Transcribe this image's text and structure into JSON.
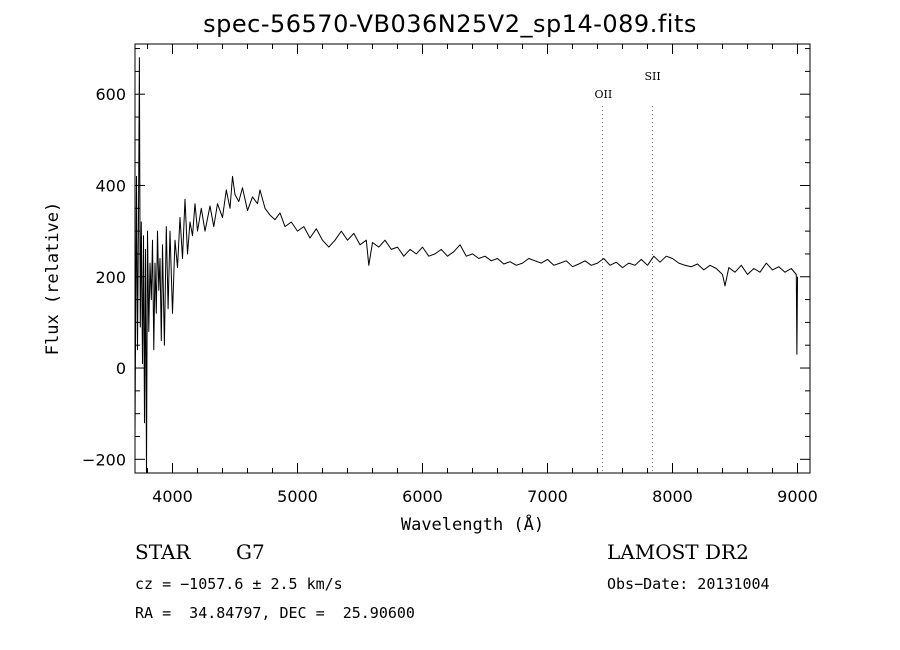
{
  "chart_data": {
    "type": "line",
    "title": "spec-56570-VB036N25V2_sp14-089.fits",
    "xlabel": "Wavelength (Å)",
    "ylabel": "Flux (relative)",
    "xlim": [
      3700,
      9100
    ],
    "ylim": [
      -230,
      710
    ],
    "xticks": [
      4000,
      5000,
      6000,
      7000,
      8000,
      9000
    ],
    "yticks": [
      -200,
      0,
      200,
      400,
      600
    ],
    "series": [
      {
        "color": "#000000",
        "points": [
          [
            3700,
            -150
          ],
          [
            3712,
            420
          ],
          [
            3720,
            40
          ],
          [
            3728,
            330
          ],
          [
            3735,
            680
          ],
          [
            3742,
            90
          ],
          [
            3750,
            320
          ],
          [
            3760,
            10
          ],
          [
            3768,
            290
          ],
          [
            3776,
            -120
          ],
          [
            3784,
            260
          ],
          [
            3792,
            -230
          ],
          [
            3800,
            300
          ],
          [
            3810,
            80
          ],
          [
            3820,
            230
          ],
          [
            3830,
            150
          ],
          [
            3840,
            280
          ],
          [
            3850,
            40
          ],
          [
            3860,
            230
          ],
          [
            3870,
            120
          ],
          [
            3880,
            300
          ],
          [
            3890,
            170
          ],
          [
            3900,
            240
          ],
          [
            3910,
            60
          ],
          [
            3920,
            270
          ],
          [
            3935,
            50
          ],
          [
            3950,
            310
          ],
          [
            3965,
            130
          ],
          [
            3980,
            300
          ],
          [
            4000,
            120
          ],
          [
            4020,
            280
          ],
          [
            4040,
            220
          ],
          [
            4060,
            330
          ],
          [
            4080,
            240
          ],
          [
            4100,
            370
          ],
          [
            4120,
            250
          ],
          [
            4140,
            320
          ],
          [
            4160,
            290
          ],
          [
            4180,
            360
          ],
          [
            4200,
            300
          ],
          [
            4230,
            350
          ],
          [
            4260,
            300
          ],
          [
            4300,
            355
          ],
          [
            4330,
            310
          ],
          [
            4360,
            360
          ],
          [
            4400,
            330
          ],
          [
            4430,
            390
          ],
          [
            4460,
            350
          ],
          [
            4480,
            420
          ],
          [
            4500,
            380
          ],
          [
            4530,
            365
          ],
          [
            4560,
            395
          ],
          [
            4600,
            345
          ],
          [
            4640,
            375
          ],
          [
            4680,
            360
          ],
          [
            4700,
            390
          ],
          [
            4740,
            350
          ],
          [
            4780,
            335
          ],
          [
            4820,
            325
          ],
          [
            4860,
            340
          ],
          [
            4900,
            310
          ],
          [
            4950,
            320
          ],
          [
            5000,
            300
          ],
          [
            5050,
            310
          ],
          [
            5100,
            285
          ],
          [
            5150,
            305
          ],
          [
            5200,
            280
          ],
          [
            5250,
            265
          ],
          [
            5300,
            280
          ],
          [
            5350,
            300
          ],
          [
            5400,
            280
          ],
          [
            5450,
            295
          ],
          [
            5500,
            270
          ],
          [
            5550,
            280
          ],
          [
            5570,
            225
          ],
          [
            5600,
            275
          ],
          [
            5650,
            265
          ],
          [
            5700,
            280
          ],
          [
            5750,
            260
          ],
          [
            5800,
            265
          ],
          [
            5850,
            245
          ],
          [
            5900,
            260
          ],
          [
            5950,
            250
          ],
          [
            6000,
            265
          ],
          [
            6050,
            245
          ],
          [
            6100,
            250
          ],
          [
            6150,
            260
          ],
          [
            6200,
            245
          ],
          [
            6250,
            255
          ],
          [
            6300,
            270
          ],
          [
            6350,
            245
          ],
          [
            6400,
            250
          ],
          [
            6450,
            240
          ],
          [
            6500,
            245
          ],
          [
            6550,
            235
          ],
          [
            6600,
            240
          ],
          [
            6650,
            228
          ],
          [
            6700,
            233
          ],
          [
            6750,
            225
          ],
          [
            6800,
            230
          ],
          [
            6850,
            240
          ],
          [
            6900,
            235
          ],
          [
            6950,
            230
          ],
          [
            7000,
            238
          ],
          [
            7050,
            225
          ],
          [
            7100,
            230
          ],
          [
            7150,
            235
          ],
          [
            7200,
            222
          ],
          [
            7250,
            228
          ],
          [
            7300,
            235
          ],
          [
            7350,
            225
          ],
          [
            7400,
            230
          ],
          [
            7450,
            240
          ],
          [
            7500,
            225
          ],
          [
            7550,
            232
          ],
          [
            7600,
            220
          ],
          [
            7650,
            230
          ],
          [
            7700,
            225
          ],
          [
            7750,
            238
          ],
          [
            7800,
            225
          ],
          [
            7850,
            245
          ],
          [
            7900,
            232
          ],
          [
            7950,
            245
          ],
          [
            8000,
            240
          ],
          [
            8050,
            230
          ],
          [
            8100,
            225
          ],
          [
            8150,
            222
          ],
          [
            8200,
            228
          ],
          [
            8250,
            215
          ],
          [
            8300,
            225
          ],
          [
            8350,
            218
          ],
          [
            8400,
            205
          ],
          [
            8420,
            180
          ],
          [
            8450,
            220
          ],
          [
            8500,
            210
          ],
          [
            8550,
            225
          ],
          [
            8600,
            205
          ],
          [
            8650,
            218
          ],
          [
            8700,
            210
          ],
          [
            8750,
            230
          ],
          [
            8800,
            215
          ],
          [
            8850,
            222
          ],
          [
            8900,
            210
          ],
          [
            8950,
            218
          ],
          [
            8990,
            205
          ],
          [
            8995,
            30
          ],
          [
            9000,
            200
          ]
        ]
      }
    ],
    "lines": [
      {
        "label": "OII",
        "x": 7440
      },
      {
        "label": "SII",
        "x": 7840
      }
    ],
    "grid": false
  },
  "info": {
    "star_type": "STAR",
    "star_class": "G7",
    "survey": "LAMOST DR2",
    "cz": "cz = −1057.6 ± 2.5 km/s",
    "obs_date": "Obs−Date: 20131004",
    "coords": "RA =  34.84797, DEC =  25.90600"
  }
}
